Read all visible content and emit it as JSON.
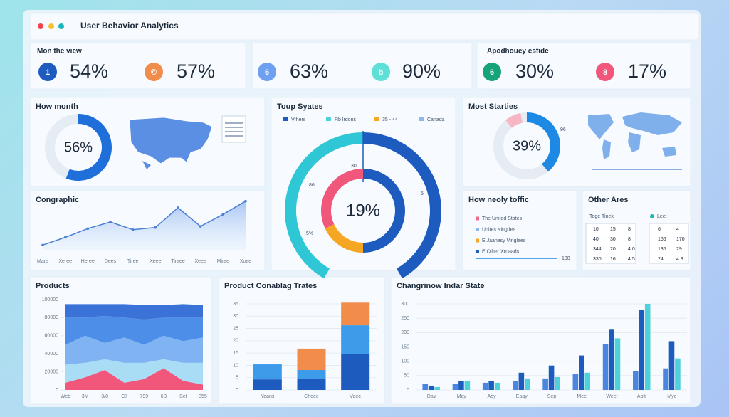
{
  "header": {
    "title": "User Behavior Analytics"
  },
  "kpi_groups": [
    {
      "title": "Mon the view",
      "items": [
        {
          "icon": "1",
          "label": "54%",
          "color": "#1e5bbf"
        },
        {
          "icon": "©",
          "label": "57%",
          "color": "#f28c4b"
        }
      ]
    },
    {
      "items": [
        {
          "icon": "6",
          "label": "63%",
          "color": "#6f9ff0"
        },
        {
          "icon": "b",
          "label": "90%",
          "color": "#5fe0d6"
        }
      ]
    },
    {
      "title": "Apodhouey esfide",
      "items": [
        {
          "icon": "6",
          "label": "30%",
          "color": "#16a37a"
        },
        {
          "icon": "8",
          "label": "17%",
          "color": "#f0577a"
        }
      ]
    }
  ],
  "panels": [
    {
      "type": "donut",
      "title": "How month",
      "label": "56%",
      "track": "#e6ecf4",
      "segments": [
        {
          "value": 56,
          "color": "#1e6fd9"
        }
      ]
    },
    {
      "type": "gauge",
      "title": "Toup Syates",
      "label": "19%",
      "legend": [
        {
          "name": "Vrhers",
          "color": "#1e5bbf"
        },
        {
          "name": "Rb lrdons",
          "color": "#4fd1d9"
        },
        {
          "name": "35 - 44",
          "color": "#f5a623"
        },
        {
          "name": "Canada",
          "color": "#8fb7ef"
        }
      ],
      "outer": [
        {
          "value": 50,
          "color": "#2fc6d6"
        },
        {
          "value": 50,
          "color": "#1e5bbf"
        }
      ],
      "inner": [
        {
          "value": 50,
          "color": "#1e5bbf"
        },
        {
          "value": 18,
          "color": "#f5a623"
        },
        {
          "value": 32,
          "color": "#f0577a"
        }
      ],
      "ring_labels": [
        "30",
        "86",
        "5",
        "5%"
      ]
    },
    {
      "type": "donut",
      "title": "Most Starties",
      "label": "39%",
      "corner_label": "96",
      "track": "#e6ecf4",
      "segments": [
        {
          "value": 39,
          "color": "#1e88e5"
        },
        {
          "value": 50,
          "color": "#e6ecf4"
        },
        {
          "value": 8,
          "color": "#f7b6c4"
        }
      ]
    },
    {
      "type": "line",
      "title": "Congraphic",
      "color": "#4a7fd6",
      "categories": [
        "Mare",
        "Xeree",
        "Heree",
        "Dees",
        "Tiree",
        "Xeee",
        "Tiraee",
        "Xeee",
        "Miree",
        "Xoee"
      ],
      "values": [
        5,
        12,
        20,
        26,
        19,
        21,
        39,
        22,
        33,
        45
      ],
      "ylim": [
        0,
        50
      ]
    },
    {
      "type": "list",
      "title": "How neoly toffic",
      "bar_label": "130",
      "items": [
        {
          "name": "The United States",
          "color": "#f06a8a"
        },
        {
          "name": "Unites Kingdes",
          "color": "#8fb7ef"
        },
        {
          "name": "E Jaanesy Vinglaes",
          "color": "#f5a623"
        },
        {
          "name": "E Other Xrnaads",
          "color": "#1e5bbf"
        }
      ]
    },
    {
      "type": "tables",
      "title": "Other Ares",
      "caption": "Toge Tinek",
      "legend": {
        "name": "Leet",
        "color": "#19b5b8"
      },
      "tables": [
        [
          [
            "10",
            "15",
            "8"
          ],
          [
            "40",
            "30",
            "8"
          ],
          [
            "344",
            "20",
            "4.0"
          ],
          [
            "330",
            "16",
            "4.5"
          ]
        ],
        [
          [
            "6",
            "4"
          ],
          [
            "165",
            "170"
          ],
          [
            "135",
            "29"
          ],
          [
            "24",
            "4.9"
          ]
        ]
      ]
    },
    {
      "type": "area",
      "title": "Products",
      "categories": [
        "Web",
        "3M",
        "3/0",
        "C7",
        "799",
        "6B",
        "Set",
        "355"
      ],
      "ylim": [
        0,
        100000
      ],
      "yticks": [
        0,
        20000,
        40000,
        60000,
        80000,
        100000
      ],
      "series": [
        {
          "color": "#f0577a",
          "values": [
            8000,
            14000,
            22000,
            8000,
            12000,
            24000,
            10000,
            6000
          ]
        },
        {
          "color": "#a9ddf5",
          "values": [
            20000,
            16000,
            12000,
            22000,
            18000,
            10000,
            20000,
            24000
          ]
        },
        {
          "color": "#7fb3f2",
          "values": [
            22000,
            30000,
            18000,
            28000,
            20000,
            26000,
            24000,
            28000
          ]
        },
        {
          "color": "#4d8fe8",
          "values": [
            30000,
            20000,
            30000,
            22000,
            28000,
            20000,
            26000,
            22000
          ]
        },
        {
          "color": "#3a72d8",
          "values": [
            15000,
            15000,
            13000,
            15000,
            16000,
            14000,
            15000,
            14000
          ]
        }
      ]
    },
    {
      "type": "stacked_bar",
      "title": "Product Conablag Trates",
      "categories": [
        "Yeans",
        "Cheee",
        "Voee"
      ],
      "ylim": [
        0,
        35
      ],
      "yticks": [
        0,
        5,
        10,
        15,
        20,
        25,
        30,
        35
      ],
      "series": [
        {
          "color": "#1e5bbf",
          "values": [
            4.3,
            4.6,
            14.7
          ]
        },
        {
          "color": "#3d9be9",
          "values": [
            6.1,
            3.5,
            11.6
          ]
        },
        {
          "color": "#f28c4b",
          "values": [
            0,
            8.7,
            9.2
          ]
        }
      ]
    },
    {
      "type": "grouped_bar",
      "title": "Changrinow Indar State",
      "categories": [
        "Day",
        "May",
        "Ady",
        "Eaqy",
        "Sep",
        "Mee",
        "Weet",
        "Apiti",
        "Mye"
      ],
      "ylim": [
        0,
        300
      ],
      "yticks": [
        0,
        50,
        100,
        150,
        200,
        250,
        300
      ],
      "series": [
        {
          "color": "#4a86e0",
          "values": [
            20,
            20,
            25,
            30,
            40,
            55,
            160,
            65,
            75
          ]
        },
        {
          "color": "#1e5bbf",
          "values": [
            15,
            30,
            30,
            60,
            85,
            120,
            210,
            280,
            170
          ]
        },
        {
          "color": "#4fd1d9",
          "values": [
            10,
            30,
            25,
            40,
            45,
            60,
            180,
            300,
            110
          ]
        }
      ]
    }
  ]
}
